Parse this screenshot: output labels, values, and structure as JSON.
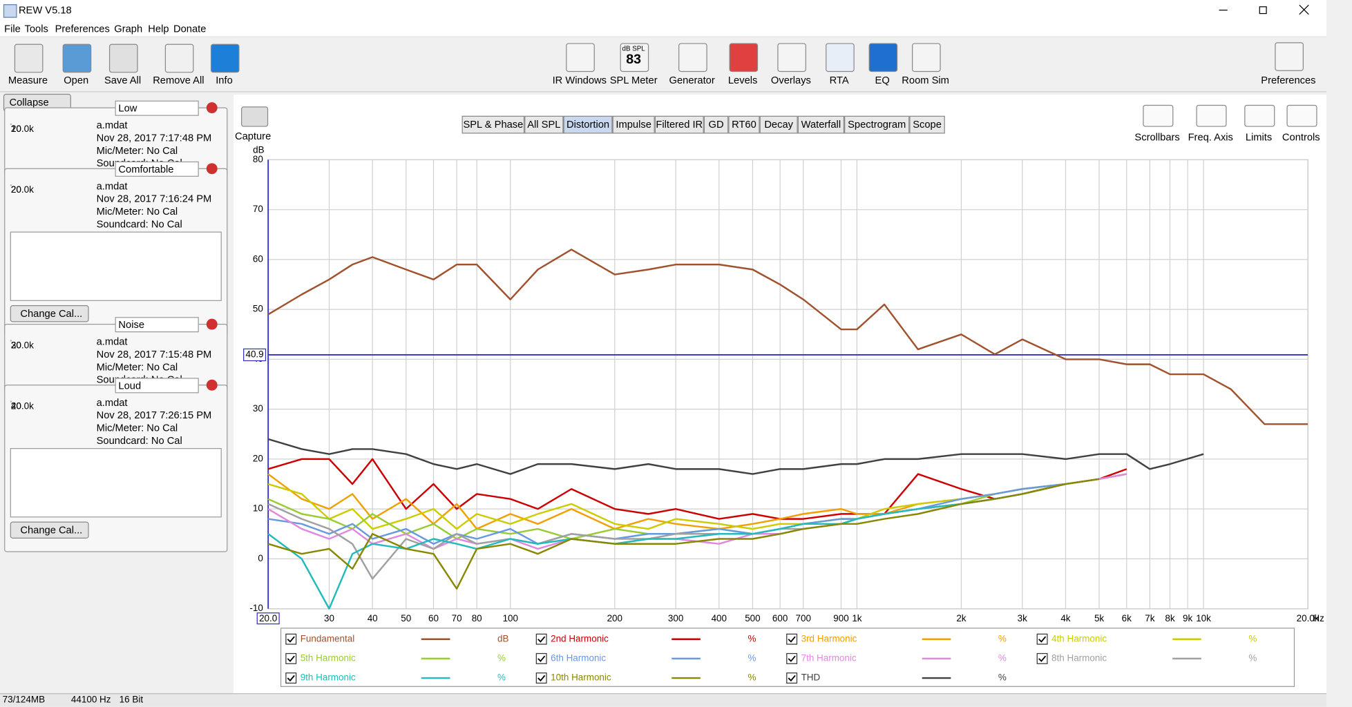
{
  "window_title": "REW V5.18",
  "menu": [
    "File",
    "Tools",
    "Preferences",
    "Graph",
    "Help",
    "Donate"
  ],
  "toolbar": {
    "left": [
      "Measure",
      "Open",
      "Save All",
      "Remove All",
      "Info"
    ],
    "center": [
      "IR Windows",
      "SPL Meter",
      "Generator",
      "Levels",
      "Overlays",
      "RTA",
      "EQ",
      "Room Sim"
    ],
    "spl_icon": {
      "unit": "dB SPL",
      "reading": "83"
    },
    "right": "Preferences"
  },
  "panel": {
    "collapse": "Collapse",
    "thumb_axis": [
      "20",
      "20.0k"
    ],
    "change_cal": "Change Cal...",
    "measurements": [
      {
        "number": "1",
        "name": "Low",
        "file": "a.mdat",
        "date": "Nov 28, 2017 7:17:48 PM",
        "mic": "Mic/Meter: No Cal",
        "soundcard": "Soundcard: No Cal",
        "color": "#cc3333",
        "expanded": false
      },
      {
        "number": "2",
        "name": "Comfortable",
        "file": "a.mdat",
        "date": "Nov 28, 2017 7:16:24 PM",
        "mic": "Mic/Meter: No Cal",
        "soundcard": "Soundcard: No Cal",
        "color": "#33a033",
        "expanded": true
      },
      {
        "number": "3",
        "name": "Noise",
        "file": "a.mdat",
        "date": "Nov 28, 2017 7:15:48 PM",
        "mic": "Mic/Meter: No Cal",
        "soundcard": "Soundcard: No Cal",
        "color": "#3333cc",
        "expanded": false
      },
      {
        "number": "4",
        "name": "Loud",
        "file": "a.mdat",
        "date": "Nov 28, 2017 7:26:15 PM",
        "mic": "Mic/Meter: No Cal",
        "soundcard": "Soundcard: No Cal",
        "color": "#b030b0",
        "expanded": true
      }
    ]
  },
  "graph_tabs": [
    "SPL & Phase",
    "All SPL",
    "Distortion",
    "Impulse",
    "Filtered IR",
    "GD",
    "RT60",
    "Decay",
    "Waterfall",
    "Spectrogram",
    "Scope"
  ],
  "selected_tab": 2,
  "capture": "Capture",
  "graph_tools": [
    "Scrollbars",
    "Freq. Axis",
    "Limits",
    "Controls"
  ],
  "chart_data": {
    "type": "line",
    "xscale": "log",
    "ylabel": "dB",
    "x_unit": "Hz",
    "cursor_y": 40.9,
    "grid": true,
    "xlim": [
      20,
      20000
    ],
    "ylim": [
      -10,
      80
    ],
    "xticks": [
      {
        "value": 20,
        "label": "20.0"
      },
      30,
      40,
      50,
      60,
      70,
      80,
      100,
      200,
      300,
      400,
      500,
      600,
      700,
      900,
      {
        "value": 1000,
        "label": "1k"
      },
      {
        "value": 2000,
        "label": "2k"
      },
      {
        "value": 3000,
        "label": "3k"
      },
      {
        "value": 4000,
        "label": "4k"
      },
      {
        "value": 5000,
        "label": "5k"
      },
      {
        "value": 6000,
        "label": "6k"
      },
      {
        "value": 7000,
        "label": "7k"
      },
      {
        "value": 8000,
        "label": "8k"
      },
      {
        "value": 9000,
        "label": "9k"
      },
      {
        "value": 10000,
        "label": "10k"
      },
      {
        "value": 20000,
        "label": "20.0k"
      }
    ],
    "yticks": [
      -10,
      0,
      10,
      20,
      30,
      40,
      50,
      60,
      70,
      80
    ],
    "x": [
      20,
      25,
      30,
      35,
      40,
      50,
      60,
      70,
      80,
      100,
      120,
      150,
      200,
      250,
      300,
      400,
      500,
      600,
      700,
      900,
      1000,
      1200,
      1500,
      2000,
      2500,
      3000,
      4000,
      5000,
      6000,
      7000,
      8000,
      10000,
      12000,
      15000,
      20000
    ],
    "series": [
      {
        "name": "Fundamental",
        "unit": "dB",
        "color": "#a0522d",
        "values": [
          49,
          53,
          56,
          59,
          60.5,
          58,
          56,
          59,
          59,
          52,
          58,
          62,
          57,
          58,
          59,
          59,
          58,
          55,
          52,
          46,
          46,
          51,
          42,
          45,
          41,
          44,
          40,
          40,
          39,
          39,
          37,
          37,
          34,
          27,
          27
        ]
      },
      {
        "name": "2nd Harmonic",
        "unit": "%",
        "color": "#cc0000",
        "values": [
          18,
          20,
          20,
          15,
          20,
          10,
          15,
          10,
          13,
          12,
          10,
          14,
          10,
          9,
          10,
          8,
          9,
          8,
          8,
          9,
          9,
          9,
          17,
          14,
          12,
          13,
          15,
          16,
          18,
          null,
          null,
          null,
          null,
          null,
          null
        ]
      },
      {
        "name": "3rd Harmonic",
        "unit": "%",
        "color": "#f0a000",
        "values": [
          17,
          12,
          10,
          13,
          8,
          12,
          7,
          11,
          6,
          9,
          7,
          10,
          6,
          8,
          7,
          6,
          7,
          8,
          9,
          10,
          9,
          9,
          11,
          12,
          13,
          14,
          15,
          16,
          17,
          null,
          null,
          null,
          null,
          null,
          null
        ]
      },
      {
        "name": "4th Harmonic",
        "unit": "%",
        "color": "#cccc00",
        "values": [
          15,
          13,
          8,
          10,
          6,
          8,
          10,
          6,
          9,
          7,
          9,
          11,
          7,
          6,
          8,
          7,
          6,
          7,
          7,
          8,
          8,
          10,
          11,
          12,
          13,
          14,
          15,
          16,
          17,
          null,
          null,
          null,
          null,
          null,
          null
        ]
      },
      {
        "name": "5th Harmonic",
        "unit": "%",
        "color": "#99cc33",
        "values": [
          12,
          9,
          8,
          6,
          9,
          5,
          7,
          4,
          6,
          5,
          6,
          4,
          6,
          5,
          5,
          6,
          5,
          6,
          7,
          8,
          8,
          9,
          10,
          11,
          13,
          14,
          15,
          16,
          17,
          null,
          null,
          null,
          null,
          null,
          null
        ]
      },
      {
        "name": "6th Harmonic",
        "unit": "%",
        "color": "#6699e0",
        "values": [
          8,
          7,
          5,
          7,
          4,
          6,
          3,
          5,
          4,
          6,
          3,
          5,
          4,
          5,
          5,
          6,
          5,
          6,
          7,
          8,
          8,
          9,
          10,
          12,
          13,
          14,
          15,
          16,
          17,
          null,
          null,
          null,
          null,
          null,
          null
        ]
      },
      {
        "name": "7th Harmonic",
        "unit": "%",
        "color": "#e088e0",
        "values": [
          10,
          6,
          4,
          6,
          3,
          5,
          2,
          4,
          3,
          4,
          2,
          4,
          3,
          4,
          4,
          3,
          5,
          5,
          6,
          7,
          8,
          9,
          10,
          11,
          12,
          13,
          15,
          16,
          17,
          null,
          null,
          null,
          null,
          null,
          null
        ]
      },
      {
        "name": "8th Harmonic",
        "unit": "%",
        "color": "#a0a0a0",
        "values": [
          11,
          8,
          6,
          3,
          -4,
          4,
          2,
          5,
          3,
          4,
          3,
          5,
          4,
          4,
          5,
          5,
          5,
          6,
          6,
          7,
          8,
          9,
          10,
          11,
          12,
          13,
          15,
          16,
          null,
          null,
          null,
          null,
          null,
          null,
          null
        ]
      },
      {
        "name": "9th Harmonic",
        "unit": "%",
        "color": "#22bbbb",
        "values": [
          5,
          0,
          -10,
          1,
          3,
          2,
          4,
          3,
          2,
          4,
          3,
          4,
          3,
          4,
          4,
          5,
          5,
          6,
          7,
          7,
          8,
          9,
          10,
          11,
          12,
          13,
          15,
          null,
          null,
          null,
          null,
          null,
          null,
          null,
          null
        ]
      },
      {
        "name": "10th Harmonic",
        "unit": "%",
        "color": "#888800",
        "values": [
          3,
          1,
          2,
          -2,
          5,
          2,
          1,
          -6,
          2,
          3,
          1,
          4,
          3,
          3,
          3,
          4,
          4,
          5,
          6,
          7,
          7,
          8,
          9,
          11,
          12,
          13,
          15,
          16,
          null,
          null,
          null,
          null,
          null,
          null,
          null
        ]
      },
      {
        "name": "THD",
        "unit": "%",
        "color": "#404040",
        "values": [
          24,
          22,
          21,
          22,
          22,
          21,
          19,
          18,
          19,
          17,
          19,
          19,
          18,
          19,
          18,
          18,
          17,
          18,
          18,
          19,
          19,
          20,
          20,
          21,
          21,
          21,
          20,
          21,
          21,
          18,
          19,
          21,
          null,
          null,
          null
        ]
      }
    ]
  },
  "status": [
    "73/124MB",
    "44100 Hz",
    "16 Bit"
  ]
}
